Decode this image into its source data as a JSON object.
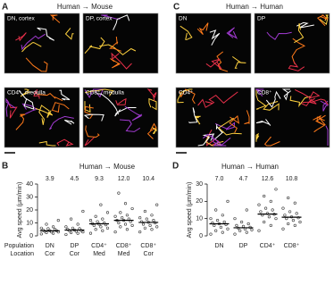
{
  "panel_a": {
    "letter": "A",
    "title": "Human → Mouse",
    "images": [
      "DN, cortex",
      "DP, cortex",
      "CD4⁺, medulla",
      "CD8⁺, medulla"
    ]
  },
  "panel_c": {
    "letter": "C",
    "title": "Human → Human",
    "images": [
      "DN",
      "DP",
      "CD4⁺",
      "CD8⁺"
    ]
  },
  "chart_data": [
    {
      "type": "dot",
      "panel_label": "B",
      "title": "Human → Mouse",
      "y_label": "Avg speed (μm/min)",
      "row_labels": [
        "Population",
        "Location"
      ],
      "categories": [
        "DN",
        "DP",
        "CD4⁺",
        "CD8⁺",
        "CD8⁺"
      ],
      "locations": [
        "Cor",
        "Cor",
        "Med",
        "Med",
        "Cor"
      ],
      "values": [
        3.9,
        4.5,
        9.3,
        12,
        10.4
      ],
      "value_labels": [
        "3.9",
        "4.5",
        "9.3",
        "12.0",
        "10.4"
      ],
      "points": [
        [
          1.5,
          2,
          2.5,
          3,
          3,
          3.5,
          4,
          4,
          4.5,
          5,
          5.5,
          6,
          7,
          9,
          12
        ],
        [
          1,
          2,
          2.5,
          3,
          3.5,
          4,
          4,
          4.5,
          5,
          5.5,
          6,
          7,
          9,
          13,
          19
        ],
        [
          2,
          4,
          5,
          6,
          7,
          8,
          8.5,
          9,
          9.5,
          10,
          11,
          12,
          13,
          15,
          18,
          24
        ],
        [
          3,
          5,
          7,
          8,
          9,
          10,
          11,
          12,
          12,
          13,
          14,
          15,
          16,
          18,
          21,
          25,
          33
        ],
        [
          3,
          5,
          6,
          7,
          8,
          9,
          10,
          10.5,
          11,
          12,
          13,
          14,
          16,
          19,
          24
        ]
      ],
      "color": "#333333",
      "ylim": [
        0,
        40
      ],
      "yticks": [
        0,
        10,
        20,
        30,
        40
      ]
    },
    {
      "type": "dot",
      "panel_label": "D",
      "title": "Human → Human",
      "y_label": "Avg speed (μm/min)",
      "categories": [
        "DN",
        "DP",
        "CD4⁺",
        "CD8⁺"
      ],
      "values": [
        7,
        4.7,
        12.6,
        10.8
      ],
      "value_labels": [
        "7.0",
        "4.7",
        "12.6",
        "10.8"
      ],
      "points": [
        [
          1,
          2,
          3,
          4,
          5,
          6,
          6.5,
          7,
          7.5,
          8,
          9,
          10,
          12,
          15,
          20
        ],
        [
          1,
          2,
          3,
          3.5,
          4,
          4.5,
          5,
          5.5,
          6,
          7,
          8,
          10,
          15
        ],
        [
          3,
          6,
          8,
          10,
          11,
          12,
          12.5,
          13,
          14,
          15,
          16,
          18,
          20,
          23,
          27
        ],
        [
          4,
          6,
          7,
          8,
          9,
          10,
          10.5,
          11,
          12,
          13,
          14,
          16,
          19,
          22
        ]
      ],
      "color": "#333333",
      "ylim": [
        0,
        30
      ],
      "yticks": [
        0,
        10,
        20,
        30
      ]
    }
  ]
}
